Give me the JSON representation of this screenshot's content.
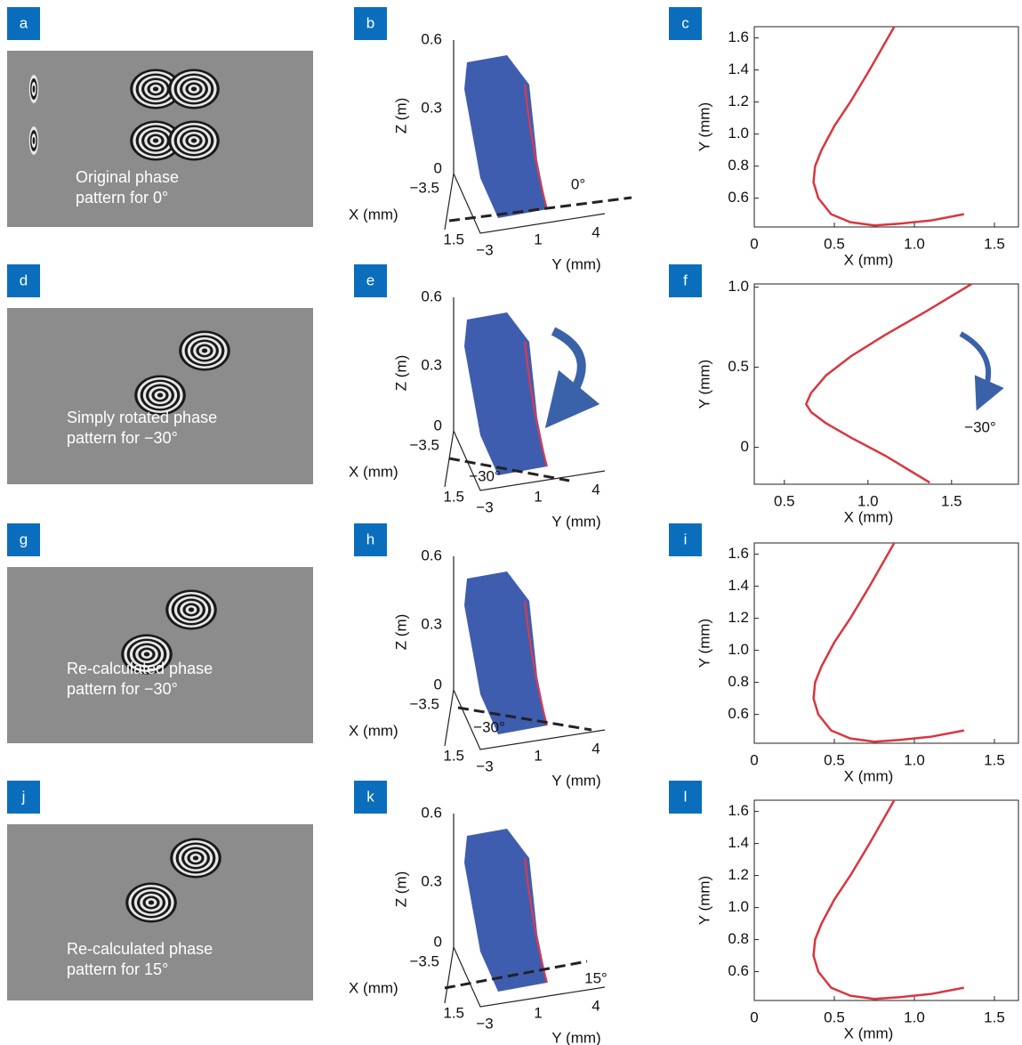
{
  "panel_labels": [
    "a",
    "b",
    "c",
    "d",
    "e",
    "f",
    "g",
    "h",
    "i",
    "j",
    "k",
    "l"
  ],
  "phase_patterns": [
    {
      "caption": [
        "Original phase",
        "pattern for 0°"
      ]
    },
    {
      "caption": [
        "Simply rotated phase",
        "pattern for −30°"
      ]
    },
    {
      "caption": [
        "Re-calculated phase",
        "pattern for −30°"
      ]
    },
    {
      "caption": [
        "Re-calculated phase",
        "pattern for 15°"
      ]
    }
  ],
  "views_3d": [
    {
      "z_ticks": [
        "0.6",
        "0.3",
        "0"
      ],
      "z_label": "Z (m)",
      "x_ticks": [
        "−3.5",
        "1.5"
      ],
      "x_label": "X (mm)",
      "y_ticks": [
        "−3",
        "1",
        "4"
      ],
      "y_label": "Y (mm)",
      "angle": "0°"
    },
    {
      "z_ticks": [
        "0.6",
        "0.3",
        "0"
      ],
      "z_label": "Z (m)",
      "x_ticks": [
        "−3.5",
        "1.5"
      ],
      "x_label": "X (mm)",
      "y_ticks": [
        "−3",
        "1",
        "4"
      ],
      "y_label": "Y (mm)",
      "angle": "−30°"
    },
    {
      "z_ticks": [
        "0.6",
        "0.3",
        "0"
      ],
      "z_label": "Z (m)",
      "x_ticks": [
        "−3.5",
        "1.5"
      ],
      "x_label": "X (mm)",
      "y_ticks": [
        "−3",
        "1",
        "4"
      ],
      "y_label": "Y (mm)",
      "angle": "−30°"
    },
    {
      "z_ticks": [
        "0.6",
        "0.3",
        "0"
      ],
      "z_label": "Z (m)",
      "x_ticks": [
        "−3.5",
        "1.5"
      ],
      "x_label": "X (mm)",
      "y_ticks": [
        "−3",
        "1",
        "4"
      ],
      "y_label": "Y (mm)",
      "angle": "15°"
    }
  ],
  "chart_data": [
    {
      "type": "line",
      "x_label": "X (mm)",
      "y_label": "Y (mm)",
      "xlim": [
        0,
        1.65
      ],
      "ylim": [
        0.42,
        1.67
      ],
      "xticks": [
        0,
        0.5,
        {
          "value": 1,
          "label": "1.0"
        },
        1.5
      ],
      "yticks": [
        0.6,
        0.8,
        {
          "value": 1,
          "label": "1.0"
        },
        1.2,
        1.4,
        1.6
      ],
      "x": [
        1.31,
        1.1,
        0.9,
        0.75,
        0.6,
        0.48,
        0.4,
        0.37,
        0.38,
        0.42,
        0.5,
        0.6,
        0.72,
        0.88
      ],
      "series": [
        {
          "color": "#d9363e",
          "values": [
            0.5,
            0.46,
            0.44,
            0.43,
            0.45,
            0.5,
            0.6,
            0.7,
            0.8,
            0.9,
            1.05,
            1.2,
            1.4,
            1.68
          ]
        }
      ]
    },
    {
      "type": "line",
      "x_label": "X (mm)",
      "y_label": "Y (mm)",
      "xlim": [
        0.32,
        1.9
      ],
      "ylim": [
        -0.23,
        1.02
      ],
      "xticks": [
        0.5,
        {
          "value": 1,
          "label": "1.0"
        },
        1.5
      ],
      "yticks": [
        0,
        0.5,
        {
          "value": 1,
          "label": "1.0"
        }
      ],
      "annotation": "−30°",
      "x": [
        1.37,
        1.1,
        0.9,
        0.75,
        0.66,
        0.63,
        0.66,
        0.75,
        0.9,
        1.1,
        1.35,
        1.62
      ],
      "series": [
        {
          "color": "#d9363e",
          "values": [
            -0.22,
            -0.05,
            0.06,
            0.15,
            0.22,
            0.27,
            0.34,
            0.45,
            0.57,
            0.7,
            0.85,
            1.02
          ]
        }
      ]
    },
    {
      "type": "line",
      "x_label": "X (mm)",
      "y_label": "Y (mm)",
      "xlim": [
        0,
        1.65
      ],
      "ylim": [
        0.42,
        1.67
      ],
      "xticks": [
        0,
        0.5,
        {
          "value": 1,
          "label": "1.0"
        },
        1.5
      ],
      "yticks": [
        0.6,
        0.8,
        {
          "value": 1,
          "label": "1.0"
        },
        1.2,
        1.4,
        1.6
      ],
      "x": [
        1.31,
        1.1,
        0.9,
        0.75,
        0.6,
        0.48,
        0.4,
        0.37,
        0.38,
        0.42,
        0.5,
        0.6,
        0.72,
        0.88
      ],
      "series": [
        {
          "color": "#d9363e",
          "values": [
            0.5,
            0.46,
            0.44,
            0.43,
            0.45,
            0.5,
            0.6,
            0.7,
            0.8,
            0.9,
            1.05,
            1.2,
            1.4,
            1.68
          ]
        }
      ]
    },
    {
      "type": "line",
      "x_label": "X (mm)",
      "y_label": "Y (mm)",
      "xlim": [
        0,
        1.65
      ],
      "ylim": [
        0.42,
        1.67
      ],
      "xticks": [
        0,
        0.5,
        {
          "value": 1,
          "label": "1.0"
        },
        1.5
      ],
      "yticks": [
        0.6,
        0.8,
        {
          "value": 1,
          "label": "1.0"
        },
        1.2,
        1.4,
        1.6
      ],
      "x": [
        1.31,
        1.1,
        0.9,
        0.75,
        0.6,
        0.48,
        0.4,
        0.37,
        0.38,
        0.42,
        0.5,
        0.6,
        0.72,
        0.88
      ],
      "series": [
        {
          "color": "#d9363e",
          "values": [
            0.5,
            0.46,
            0.44,
            0.43,
            0.45,
            0.5,
            0.6,
            0.7,
            0.8,
            0.9,
            1.05,
            1.2,
            1.4,
            1.68
          ]
        }
      ]
    }
  ]
}
